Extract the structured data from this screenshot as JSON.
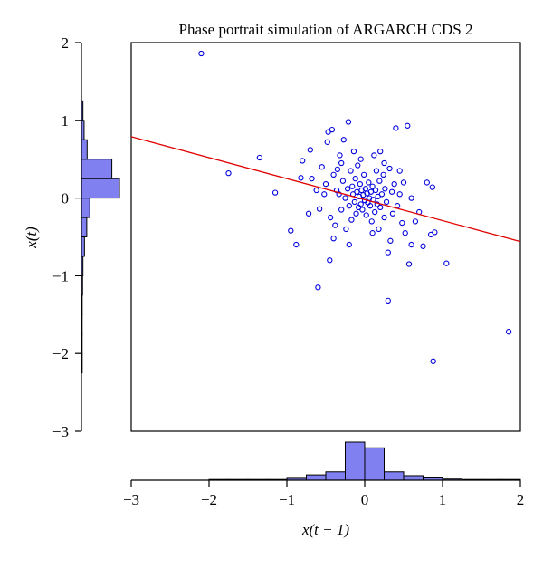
{
  "chart_data": {
    "type": "scatter",
    "title": "Phase portrait simulation of ARGARCH CDS 2",
    "xlabel": "x(t − 1)",
    "ylabel": "x(t)",
    "xlim": [
      -3,
      2
    ],
    "ylim": [
      -3,
      2
    ],
    "xticks": [
      "−3",
      "−2",
      "−1",
      "0",
      "1",
      "2"
    ],
    "yticks": [
      "2",
      "1",
      "0",
      "−1",
      "−2",
      "−3"
    ],
    "xtick_values": [
      -3,
      -2,
      -1,
      0,
      1,
      2
    ],
    "ytick_values": [
      2,
      1,
      0,
      -1,
      -2,
      -3
    ],
    "grid": false,
    "marker_color": "#0000dd",
    "line_color": "#e00000",
    "hist_fill": "#8080f0",
    "regression_line": {
      "intercept": -0.02,
      "slope": -0.27
    },
    "points": [
      [
        -2.1,
        1.86
      ],
      [
        -1.75,
        0.32
      ],
      [
        -1.35,
        0.52
      ],
      [
        -1.15,
        0.07
      ],
      [
        -0.88,
        -0.6
      ],
      [
        -0.82,
        0.26
      ],
      [
        -0.8,
        0.48
      ],
      [
        -0.72,
        -0.2
      ],
      [
        -0.68,
        0.25
      ],
      [
        -0.62,
        0.1
      ],
      [
        -0.6,
        -1.15
      ],
      [
        -0.58,
        -0.14
      ],
      [
        -0.55,
        0.4
      ],
      [
        -0.52,
        0.05
      ],
      [
        -0.5,
        0.18
      ],
      [
        -0.48,
        0.72
      ],
      [
        -0.47,
        0.85
      ],
      [
        -0.45,
        -0.8
      ],
      [
        -0.44,
        -0.25
      ],
      [
        -0.42,
        0.88
      ],
      [
        -0.4,
        0.3
      ],
      [
        -0.38,
        -0.35
      ],
      [
        -0.36,
        0.1
      ],
      [
        -0.35,
        0.37
      ],
      [
        -0.33,
        0.05
      ],
      [
        -0.32,
        0.55
      ],
      [
        -0.3,
        -0.15
      ],
      [
        -0.28,
        0.22
      ],
      [
        -0.27,
        0.75
      ],
      [
        -0.25,
        0.0
      ],
      [
        -0.24,
        -0.4
      ],
      [
        -0.22,
        0.12
      ],
      [
        -0.21,
        0.98
      ],
      [
        -0.2,
        -0.1
      ],
      [
        -0.18,
        0.35
      ],
      [
        -0.17,
        -0.28
      ],
      [
        -0.16,
        0.15
      ],
      [
        -0.15,
        0.05
      ],
      [
        -0.14,
        0.6
      ],
      [
        -0.13,
        -0.05
      ],
      [
        -0.12,
        0.25
      ],
      [
        -0.11,
        -0.2
      ],
      [
        -0.1,
        0.08
      ],
      [
        -0.09,
        0.42
      ],
      [
        -0.08,
        -0.12
      ],
      [
        -0.07,
        0.02
      ],
      [
        -0.06,
        0.18
      ],
      [
        -0.05,
        -0.08
      ],
      [
        -0.04,
        0.1
      ],
      [
        -0.03,
        -0.15
      ],
      [
        -0.02,
        0.04
      ],
      [
        -0.01,
        0.3
      ],
      [
        0.0,
        -0.03
      ],
      [
        0.01,
        0.12
      ],
      [
        0.02,
        -0.22
      ],
      [
        0.03,
        0.06
      ],
      [
        0.04,
        -0.06
      ],
      [
        0.05,
        0.2
      ],
      [
        0.06,
        0.0
      ],
      [
        0.07,
        -0.1
      ],
      [
        0.08,
        0.08
      ],
      [
        0.09,
        -0.3
      ],
      [
        0.1,
        0.15
      ],
      [
        0.11,
        -0.02
      ],
      [
        0.12,
        0.55
      ],
      [
        0.13,
        -0.18
      ],
      [
        0.14,
        0.1
      ],
      [
        0.15,
        0.35
      ],
      [
        0.16,
        -0.08
      ],
      [
        0.17,
        0.02
      ],
      [
        0.18,
        -0.4
      ],
      [
        0.19,
        0.22
      ],
      [
        0.2,
        -0.12
      ],
      [
        0.22,
        0.05
      ],
      [
        0.24,
        0.3
      ],
      [
        0.25,
        -0.25
      ],
      [
        0.26,
        0.12
      ],
      [
        0.28,
        -0.05
      ],
      [
        0.3,
        -1.32
      ],
      [
        0.32,
        0.38
      ],
      [
        0.33,
        -0.55
      ],
      [
        0.35,
        0.08
      ],
      [
        0.36,
        -0.2
      ],
      [
        0.38,
        0.18
      ],
      [
        0.4,
        0.9
      ],
      [
        0.42,
        -0.1
      ],
      [
        0.45,
        0.05
      ],
      [
        0.48,
        -0.32
      ],
      [
        0.5,
        0.2
      ],
      [
        0.52,
        -0.45
      ],
      [
        0.55,
        0.93
      ],
      [
        0.57,
        -0.85
      ],
      [
        0.6,
        0.0
      ],
      [
        0.65,
        -0.3
      ],
      [
        0.7,
        -0.18
      ],
      [
        0.75,
        -0.62
      ],
      [
        0.8,
        0.2
      ],
      [
        0.85,
        -0.47
      ],
      [
        0.87,
        0.14
      ],
      [
        0.9,
        -0.44
      ],
      [
        0.88,
        -2.1
      ],
      [
        1.05,
        -0.84
      ],
      [
        1.85,
        -1.72
      ],
      [
        -0.95,
        -0.42
      ],
      [
        -0.7,
        0.62
      ],
      [
        -0.3,
        0.45
      ],
      [
        -0.05,
        0.5
      ],
      [
        0.2,
        0.6
      ],
      [
        0.3,
        -0.7
      ],
      [
        0.45,
        0.35
      ],
      [
        0.6,
        -0.6
      ],
      [
        -0.4,
        -0.52
      ],
      [
        0.1,
        -0.45
      ],
      [
        -0.2,
        -0.6
      ],
      [
        0.25,
        0.45
      ]
    ],
    "marginal_x_hist": {
      "bin_edges": [
        -3,
        -2.75,
        -2.5,
        -2.25,
        -2,
        -1.75,
        -1.5,
        -1.25,
        -1,
        -0.75,
        -0.5,
        -0.25,
        0,
        0.25,
        0.5,
        0.75,
        1,
        1.25,
        1.5,
        1.75,
        2
      ],
      "densities": [
        0,
        0,
        0,
        0,
        0.006,
        0.004,
        0.006,
        0.008,
        0.05,
        0.14,
        0.22,
        1.0,
        0.85,
        0.22,
        0.12,
        0.06,
        0.03,
        0.012,
        0.006,
        0.006
      ]
    },
    "marginal_y_hist": {
      "bin_edges": [
        -2.25,
        -2,
        -1.75,
        -1.5,
        -1.25,
        -1,
        -0.75,
        -0.5,
        -0.25,
        0,
        0.25,
        0.5,
        0.75,
        1,
        1.25
      ],
      "densities": [
        0.02,
        0.015,
        0.015,
        0.02,
        0.03,
        0.04,
        0.08,
        0.14,
        0.22,
        1.0,
        0.8,
        0.15,
        0.07,
        0.04
      ]
    }
  }
}
